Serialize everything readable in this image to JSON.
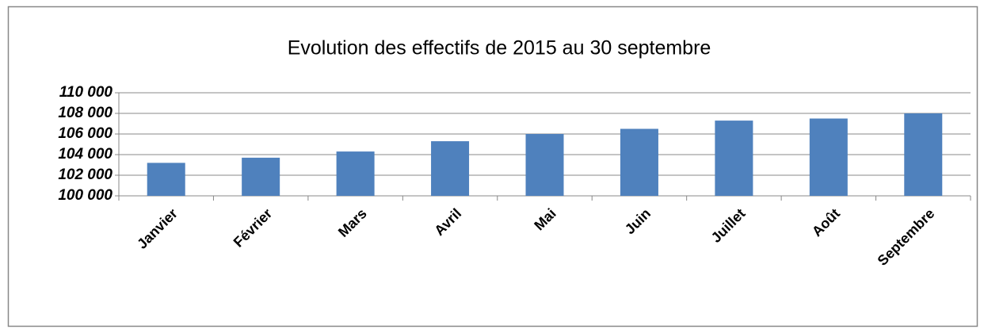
{
  "chart_data": {
    "type": "bar",
    "title": "Evolution des effectifs de 2015 au 30 septembre",
    "categories": [
      "Janvier",
      "Février",
      "Mars",
      "Avril",
      "Mai",
      "Juin",
      "Juillet",
      "Août",
      "Septembre"
    ],
    "values": [
      103200,
      103700,
      104300,
      105300,
      106000,
      106500,
      107300,
      107500,
      108000
    ],
    "color": "#4f81bd",
    "ylim": [
      100000,
      110000
    ],
    "yticks": [
      {
        "value": 100000,
        "label": "100 000"
      },
      {
        "value": 102000,
        "label": "102 000"
      },
      {
        "value": 104000,
        "label": "104 000"
      },
      {
        "value": 106000,
        "label": "106 000"
      },
      {
        "value": 108000,
        "label": "108 000"
      },
      {
        "value": 110000,
        "label": "110 000"
      }
    ],
    "grid": true
  }
}
